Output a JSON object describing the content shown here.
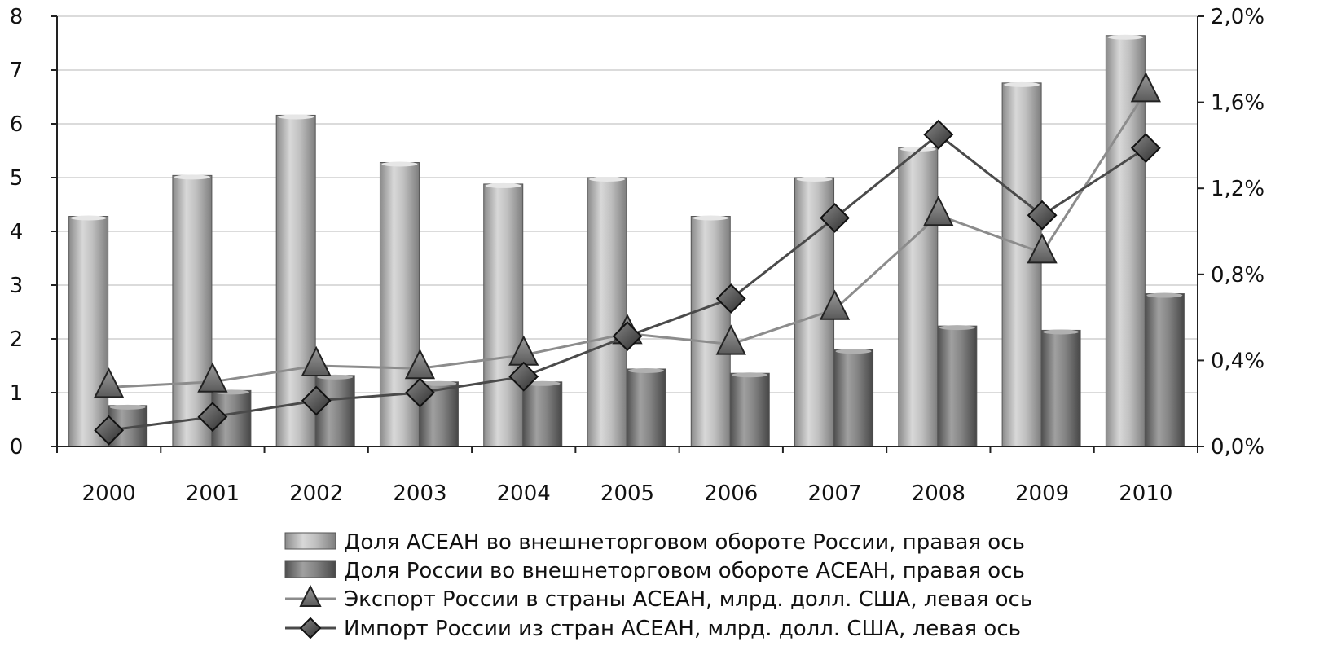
{
  "chart_data": {
    "type": "bar",
    "categories": [
      "2000",
      "2001",
      "2002",
      "2003",
      "2004",
      "2005",
      "2006",
      "2007",
      "2008",
      "2009",
      "2010"
    ],
    "left_axis": {
      "ylim": [
        0,
        8
      ],
      "ticks": [
        "0",
        "1",
        "2",
        "3",
        "4",
        "5",
        "6",
        "7",
        "8"
      ]
    },
    "right_axis": {
      "ylim": [
        0,
        2.0
      ],
      "ticks": [
        "0,0%",
        "0,4%",
        "0,8%",
        "1,2%",
        "1,6%",
        "2,0%"
      ]
    },
    "series": [
      {
        "name": "Доля АСЕАН во внешнеторговом обороте России, правая ось",
        "kind": "bar",
        "axis": "right",
        "color": "#b4b4b4",
        "values": [
          1.07,
          1.26,
          1.54,
          1.32,
          1.22,
          1.25,
          1.07,
          1.25,
          1.39,
          1.69,
          1.91
        ]
      },
      {
        "name": "Доля России во внешнеторговом обороте АСЕАН, правая ось",
        "kind": "bar",
        "axis": "right",
        "color": "#7a7a7a",
        "values": [
          0.19,
          0.26,
          0.33,
          0.3,
          0.3,
          0.36,
          0.34,
          0.45,
          0.56,
          0.54,
          0.71
        ]
      },
      {
        "name": "Экспорт России в страны АСЕАН, млрд. долл. США, левая ось",
        "kind": "line",
        "marker": "triangle",
        "axis": "left",
        "color": "#8c8c8c",
        "values": [
          1.1,
          1.2,
          1.5,
          1.45,
          1.7,
          2.1,
          1.9,
          2.55,
          4.3,
          3.6,
          6.6
        ]
      },
      {
        "name": "Импорт России из стран АСЕАН, млрд. долл. США, левая ось",
        "kind": "line",
        "marker": "diamond",
        "axis": "left",
        "color": "#4a4a4a",
        "values": [
          0.3,
          0.55,
          0.85,
          1.0,
          1.3,
          2.05,
          2.75,
          4.25,
          5.8,
          4.3,
          5.55
        ]
      }
    ],
    "grid": true,
    "legend_position": "bottom"
  }
}
